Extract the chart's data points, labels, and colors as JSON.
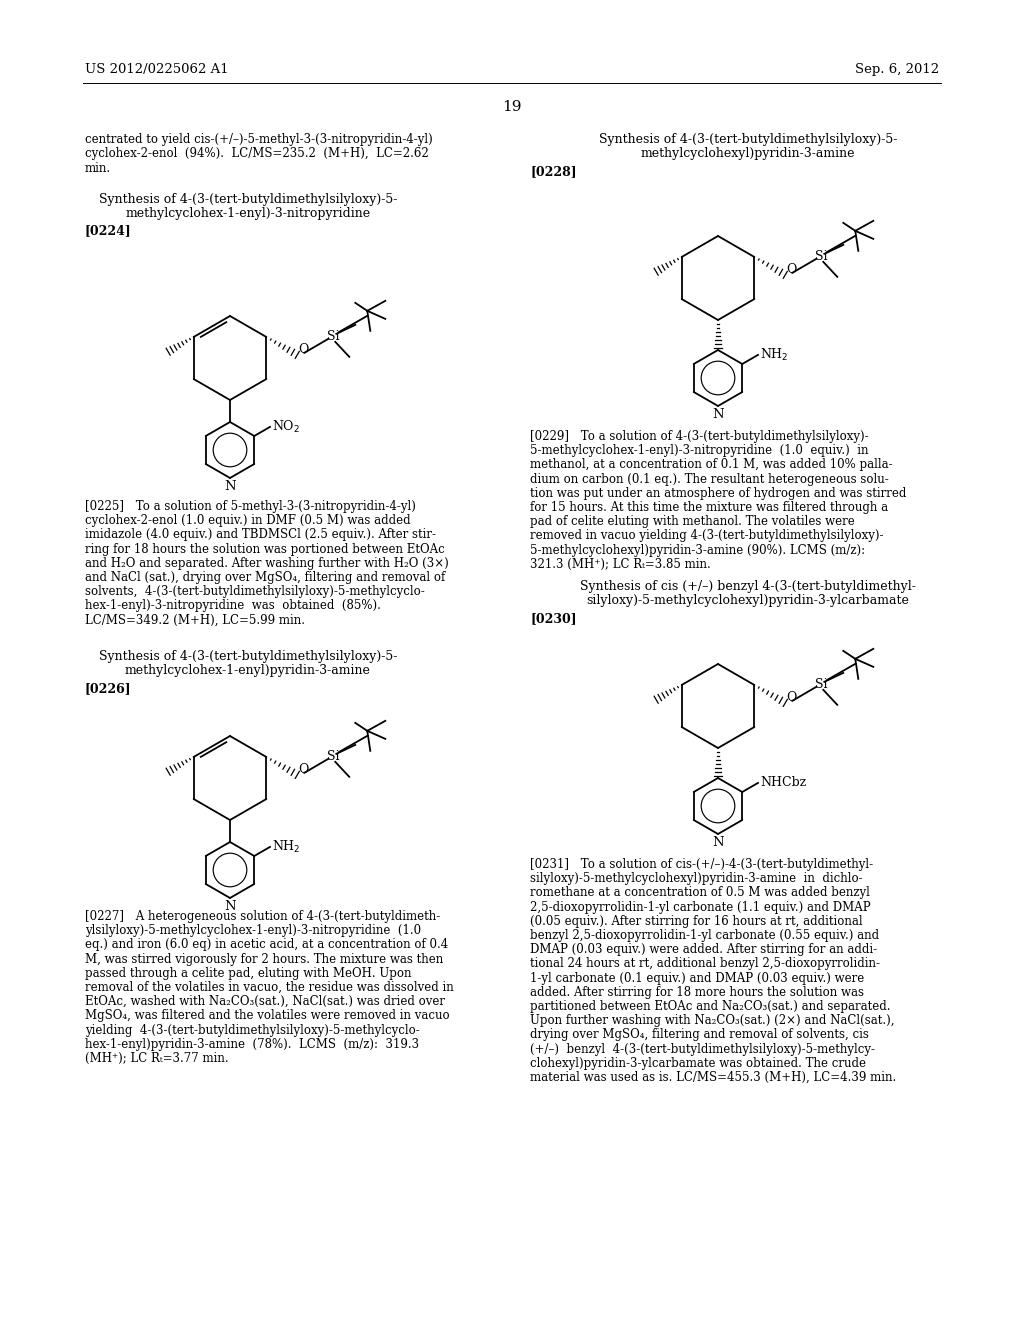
{
  "page_header_left": "US 2012/0225062 A1",
  "page_header_right": "Sep. 6, 2012",
  "page_number": "19",
  "bg": "#ffffff",
  "intro_left": "centrated to yield cis-(+/–)-5-methyl-3-(3-nitropyridin-4-yl)\ncyclohex-2-enol  (94%).  LC/MS=235.2  (M+H),  LC=2.62\nmin.",
  "t224_1": "Synthesis of 4-(3-(tert-butyldimethylsilyloxy)-5-",
  "t224_2": "methylcyclohex-1-enyl)-3-nitropyridine",
  "l224": "[0224]",
  "p225": "[0225] To a solution of 5-methyl-3-(3-nitropyridin-4-yl)\ncyclohex-2-enol (1.0 equiv.) in DMF (0.5 M) was added\nimidazole (4.0 equiv.) and TBDMSCl (2.5 equiv.). After stir-\nring for 18 hours the solution was portioned between EtOAc\nand H₂O and separated. After washing further with H₂O (3×)\nand NaCl (sat.), drying over MgSO₄, filtering and removal of\nsolvents,  4-(3-(tert-butyldimethylsilyloxy)-5-methylcyclo-\nhex-1-enyl)-3-nitropyridine  was  obtained  (85%).\nLC/MS=349.2 (M+H), LC=5.99 min.",
  "t226_1": "Synthesis of 4-(3-(tert-butyldimethylsilyloxy)-5-",
  "t226_2": "methylcyclohex-1-enyl)pyridin-3-amine",
  "l226": "[0226]",
  "p227": "[0227] A heterogeneous solution of 4-(3-(tert-butyldimeth-\nylsilyloxy)-5-methylcyclohex-1-enyl)-3-nitropyridine  (1.0\neq.) and iron (6.0 eq) in acetic acid, at a concentration of 0.4\nM, was stirred vigorously for 2 hours. The mixture was then\npassed through a celite pad, eluting with MeOH. Upon\nremoval of the volatiles in vacuo, the residue was dissolved in\nEtOAc, washed with Na₂CO₃(sat.), NaCl(sat.) was dried over\nMgSO₄, was filtered and the volatiles were removed in vacuo\nyielding  4-(3-(tert-butyldimethylsilyloxy)-5-methylcyclo-\nhex-1-enyl)pyridin-3-amine  (78%).  LCMS  (m/z):  319.3\n(MH⁺); LC Rₜ=3.77 min.",
  "t228_1": "Synthesis of 4-(3-(tert-butyldimethylsilyloxy)-5-",
  "t228_2": "methylcyclohexyl)pyridin-3-amine",
  "l228": "[0228]",
  "p229": "[0229] To a solution of 4-(3-(tert-butyldimethylsilyloxy)-\n5-methylcyclohex-1-enyl)-3-nitropyridine  (1.0  equiv.)  in\nmethanol, at a concentration of 0.1 M, was added 10% palla-\ndium on carbon (0.1 eq.). The resultant heterogeneous solu-\ntion was put under an atmosphere of hydrogen and was stirred\nfor 15 hours. At this time the mixture was filtered through a\npad of celite eluting with methanol. The volatiles were\nremoved in vacuo yielding 4-(3-(tert-butyldimethylsilyloxy)-\n5-methylcyclohexyl)pyridin-3-amine (90%). LCMS (m/z):\n321.3 (MH⁺); LC Rₜ=3.85 min.",
  "t230_1": "Synthesis of cis (+/–) benzyl 4-(3-(tert-butyldimethyl-",
  "t230_2": "silyloxy)-5-methylcyclohexyl)pyridin-3-ylcarbamate",
  "l230": "[0230]",
  "p231": "[0231] To a solution of cis-(+/–)-4-(3-(tert-butyldimethyl-\nsilyloxy)-5-methylcyclohexyl)pyridin-3-amine  in  dichlo-\nromethane at a concentration of 0.5 M was added benzyl\n2,5-dioxopyrrolidin-1-yl carbonate (1.1 equiv.) and DMAP\n(0.05 equiv.). After stirring for 16 hours at rt, additional\nbenzyl 2,5-dioxopyrrolidin-1-yl carbonate (0.55 equiv.) and\nDMAP (0.03 equiv.) were added. After stirring for an addi-\ntional 24 hours at rt, additional benzyl 2,5-dioxopyrrolidin-\n1-yl carbonate (0.1 equiv.) and DMAP (0.03 equiv.) were\nadded. After stirring for 18 more hours the solution was\npartitioned between EtOAc and Na₂CO₃(sat.) and separated.\nUpon further washing with Na₂CO₃(sat.) (2×) and NaCl(sat.),\ndrying over MgSO₄, filtering and removal of solvents, cis\n(+/–)  benzyl  4-(3-(tert-butyldimethylsilyloxy)-5-methylcy-\nclohexyl)pyridin-3-ylcarbamate was obtained. The crude\nmaterial was used as is. LC/MS=455.3 (M+H), LC=4.39 min."
}
